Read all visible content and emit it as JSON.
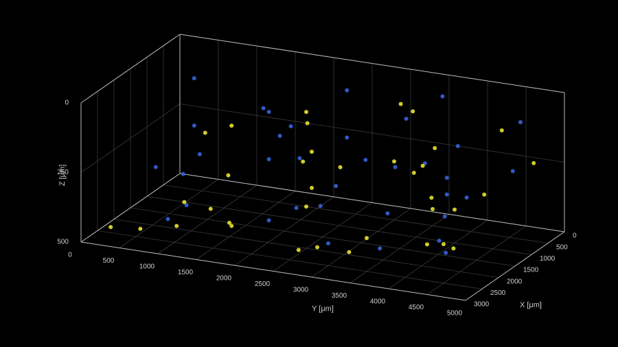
{
  "chart_data": {
    "type": "scatter3d",
    "xlabel": "X [μm]",
    "ylabel": "Y [μm]",
    "zlabel": "Z [μm]",
    "xlim": [
      0,
      3000
    ],
    "ylim": [
      0,
      5000
    ],
    "zlim": [
      0,
      500
    ],
    "zreverse": true,
    "grid": true,
    "xticks": [
      0,
      500,
      1000,
      1500,
      2000,
      2500,
      3000
    ],
    "yticks": [
      0,
      500,
      1000,
      1500,
      2000,
      2500,
      3000,
      3500,
      4000,
      4500,
      5000
    ],
    "zticks": [
      0,
      250,
      500
    ],
    "series": [
      {
        "color": "#3563d8",
        "x": [
          500,
          1200,
          2000,
          2600,
          800,
          1500,
          2200,
          300,
          1000,
          1800,
          2500,
          600,
          1400,
          2100,
          2800,
          900,
          1700,
          2400,
          400,
          1100,
          1900,
          2700,
          700,
          1300,
          2300,
          1600,
          200,
          1000,
          2000,
          2900,
          500,
          1500,
          2500,
          1200,
          1800,
          800
        ],
        "y": [
          400,
          700,
          900,
          1200,
          1500,
          1800,
          2100,
          2300,
          2600,
          2800,
          3000,
          3200,
          3400,
          3600,
          3800,
          4000,
          4200,
          4400,
          4600,
          4800,
          500,
          1000,
          1600,
          2000,
          2500,
          3100,
          3500,
          3900,
          4300,
          4700,
          1300,
          2200,
          2900,
          3700,
          4500,
          600
        ],
        "z": [
          100,
          200,
          300,
          350,
          150,
          250,
          400,
          80,
          180,
          280,
          420,
          120,
          220,
          320,
          380,
          160,
          260,
          360,
          90,
          200,
          300,
          400,
          240,
          140,
          330,
          190,
          60,
          270,
          310,
          350,
          170,
          230,
          290,
          210,
          250,
          340
        ]
      },
      {
        "color": "#e6e22e",
        "x": [
          2800,
          2600,
          2200,
          1000,
          1800,
          2400,
          600,
          1400,
          2000,
          2700,
          300,
          1200,
          2500,
          900,
          1700,
          2300,
          500,
          1500,
          2900,
          1100,
          2100,
          800,
          1600,
          2600,
          400,
          1300,
          1900,
          2500,
          700,
          2000,
          1200,
          2800,
          1500,
          2200,
          900,
          1700
        ],
        "y": [
          300,
          600,
          900,
          1100,
          1400,
          1700,
          1900,
          2200,
          2500,
          2700,
          3000,
          3300,
          3500,
          3700,
          4000,
          4200,
          4400,
          4600,
          4800,
          800,
          1300,
          2000,
          2400,
          2900,
          3200,
          3600,
          4100,
          4500,
          4900,
          1500,
          2600,
          3400,
          3800,
          1000,
          2100,
          4300
        ],
        "z": [
          450,
          460,
          470,
          200,
          300,
          420,
          150,
          250,
          350,
          440,
          100,
          220,
          380,
          180,
          280,
          390,
          120,
          260,
          330,
          230,
          400,
          170,
          320,
          430,
          110,
          240,
          300,
          360,
          200,
          450,
          270,
          410,
          190,
          380,
          260,
          310
        ]
      }
    ]
  }
}
